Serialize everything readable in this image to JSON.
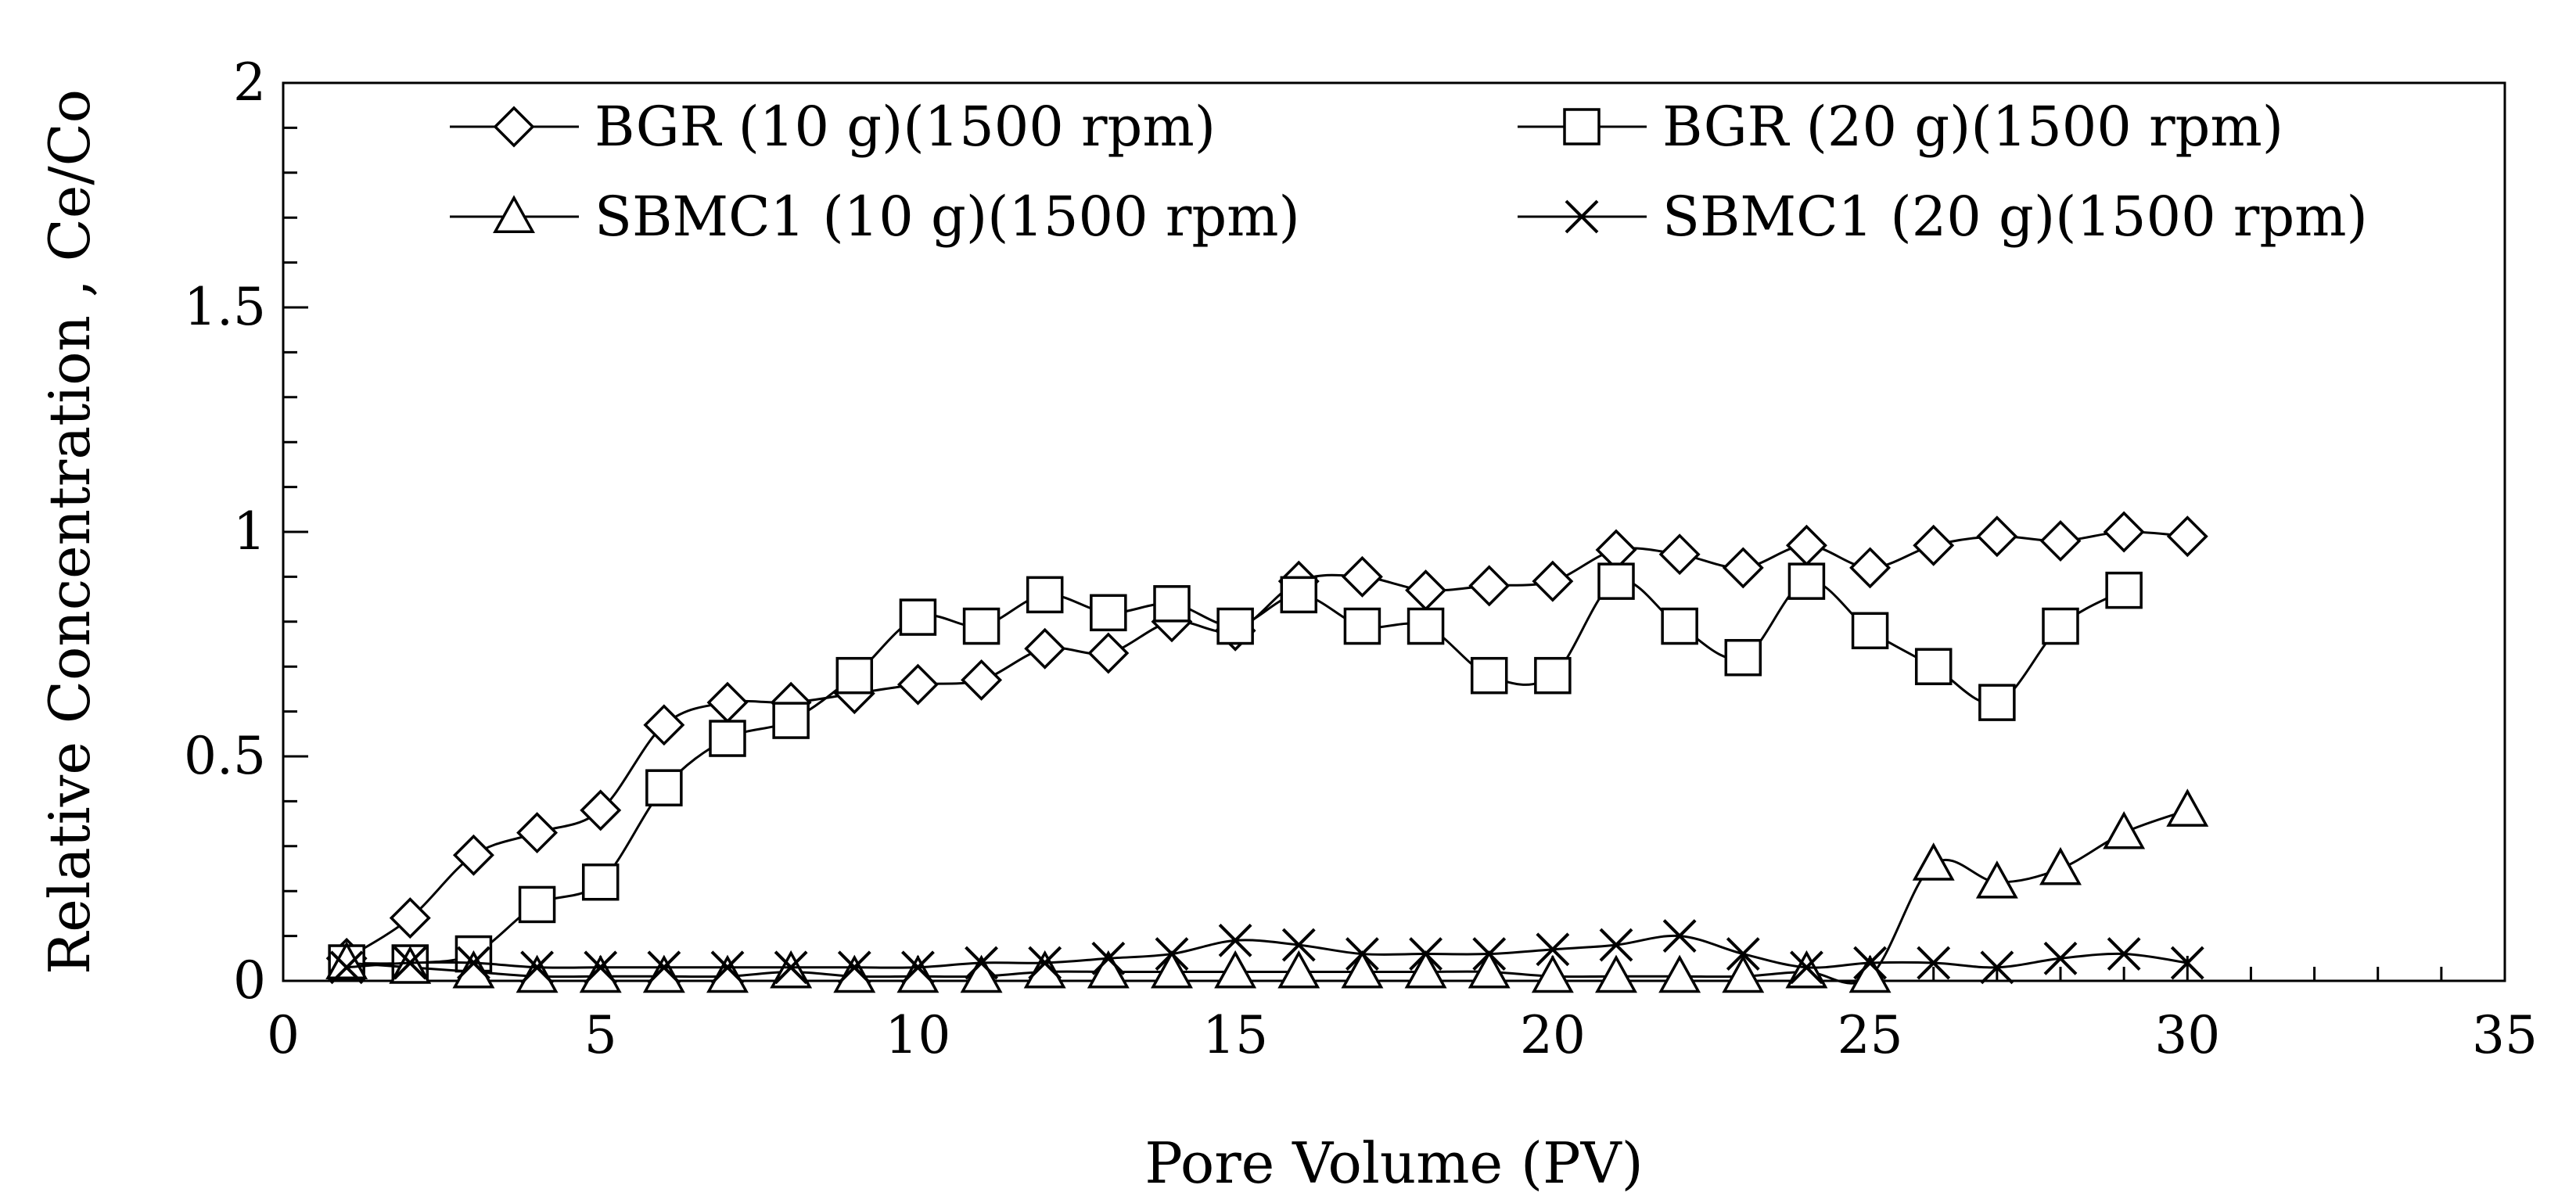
{
  "chart_data": {
    "type": "line",
    "title": "",
    "xlabel": "Pore Volume (PV)",
    "ylabel": "Relative Concentration , Ce/Co",
    "xlim": [
      0,
      35
    ],
    "ylim": [
      0,
      2
    ],
    "x_ticks": [
      0,
      5,
      10,
      15,
      20,
      25,
      30,
      35
    ],
    "x_tick_labels": [
      "0",
      "5",
      "10",
      "15",
      "20",
      "25",
      "30",
      "35"
    ],
    "y_ticks": [
      0,
      0.5,
      1,
      1.5,
      2
    ],
    "y_tick_labels": [
      "0",
      "0.5",
      "1",
      "1.5",
      "2"
    ],
    "grid": false,
    "legend_placement": "top",
    "series": [
      {
        "name": "BGR (10 g)(1500 rpm)",
        "marker": "diamond",
        "x": [
          1,
          2,
          3,
          4,
          5,
          6,
          7,
          8,
          9,
          10,
          11,
          12,
          13,
          14,
          15,
          16,
          17,
          18,
          19,
          20,
          21,
          22,
          23,
          24,
          25,
          26,
          27,
          28,
          29,
          30
        ],
        "values": [
          0.05,
          0.14,
          0.28,
          0.33,
          0.38,
          0.57,
          0.62,
          0.62,
          0.64,
          0.66,
          0.67,
          0.74,
          0.73,
          0.8,
          0.78,
          0.89,
          0.9,
          0.87,
          0.88,
          0.89,
          0.96,
          0.95,
          0.92,
          0.97,
          0.92,
          0.97,
          0.99,
          0.98,
          1.0,
          0.99
        ]
      },
      {
        "name": "BGR (20 g)(1500 rpm)",
        "marker": "square",
        "x": [
          1,
          2,
          3,
          4,
          5,
          6,
          7,
          8,
          9,
          10,
          11,
          12,
          13,
          14,
          15,
          16,
          17,
          18,
          19,
          20,
          21,
          22,
          23,
          24,
          25,
          26,
          27,
          28,
          29
        ],
        "values": [
          0.04,
          0.04,
          0.06,
          0.17,
          0.22,
          0.43,
          0.54,
          0.58,
          0.68,
          0.81,
          0.79,
          0.86,
          0.82,
          0.84,
          0.79,
          0.86,
          0.79,
          0.79,
          0.68,
          0.68,
          0.89,
          0.79,
          0.72,
          0.89,
          0.78,
          0.7,
          0.62,
          0.79,
          0.87
        ]
      },
      {
        "name": "SBMC1 (10 g)(1500 rpm)",
        "marker": "triangle",
        "x": [
          1,
          2,
          3,
          4,
          5,
          6,
          7,
          8,
          9,
          10,
          11,
          12,
          13,
          14,
          15,
          16,
          17,
          18,
          19,
          20,
          21,
          22,
          23,
          24,
          25,
          26,
          27,
          28,
          29,
          30
        ],
        "values": [
          0.04,
          0.03,
          0.02,
          0.01,
          0.01,
          0.01,
          0.01,
          0.02,
          0.01,
          0.01,
          0.01,
          0.02,
          0.02,
          0.02,
          0.02,
          0.02,
          0.02,
          0.02,
          0.02,
          0.01,
          0.01,
          0.01,
          0.01,
          0.02,
          0.01,
          0.26,
          0.22,
          0.25,
          0.33,
          0.38
        ]
      },
      {
        "name": "SBMC1 (20 g)(1500 rpm)",
        "marker": "x",
        "x": [
          1,
          2,
          3,
          4,
          5,
          6,
          7,
          8,
          9,
          10,
          11,
          12,
          13,
          14,
          15,
          16,
          17,
          18,
          19,
          20,
          21,
          22,
          23,
          24,
          25,
          26,
          27,
          28,
          29,
          30
        ],
        "values": [
          0.03,
          0.04,
          0.04,
          0.03,
          0.03,
          0.03,
          0.03,
          0.03,
          0.03,
          0.03,
          0.04,
          0.04,
          0.05,
          0.06,
          0.09,
          0.08,
          0.06,
          0.06,
          0.06,
          0.07,
          0.08,
          0.1,
          0.06,
          0.03,
          0.04,
          0.04,
          0.03,
          0.05,
          0.06,
          0.04
        ]
      }
    ]
  }
}
